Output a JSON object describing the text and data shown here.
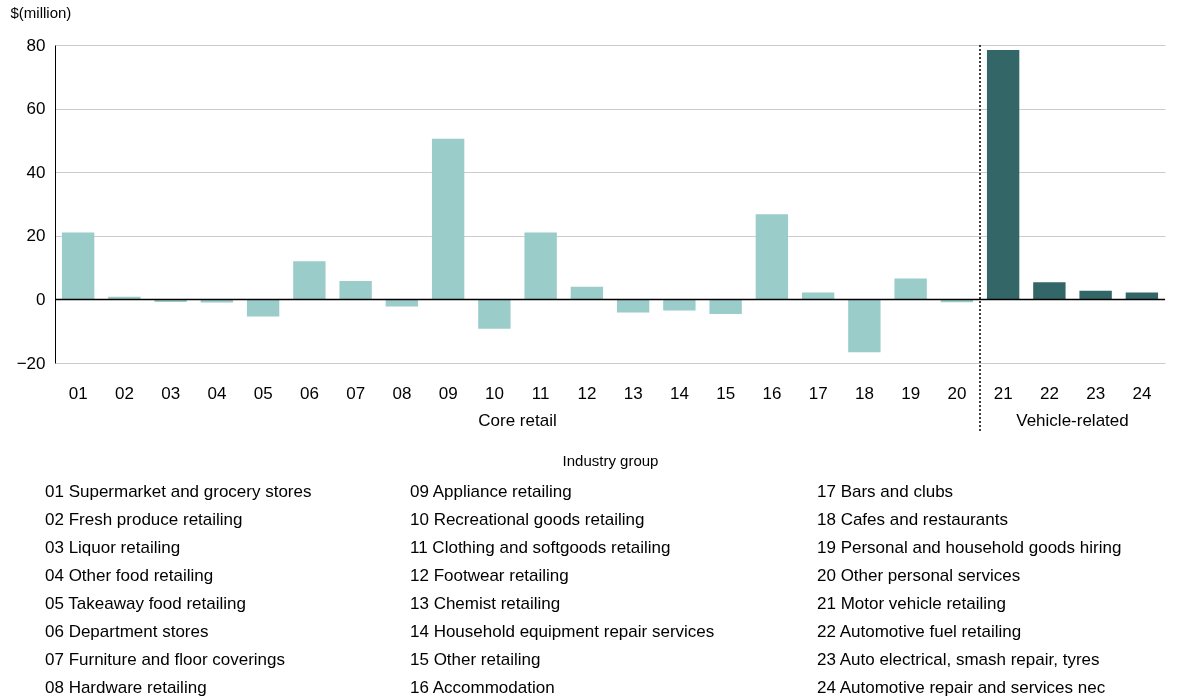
{
  "chart_data": {
    "type": "bar",
    "xlabel": "Industry group",
    "ylabel": "$(million)",
    "categories": [
      "01",
      "02",
      "03",
      "04",
      "05",
      "06",
      "07",
      "08",
      "09",
      "10",
      "11",
      "12",
      "13",
      "14",
      "15",
      "16",
      "17",
      "18",
      "19",
      "20",
      "21",
      "22",
      "23",
      "24"
    ],
    "values": [
      21,
      0.8,
      -0.8,
      -1,
      -5.4,
      12,
      5.8,
      -2.2,
      50.5,
      -9.2,
      21,
      4,
      -4.1,
      -3.5,
      -4.6,
      26.8,
      2.2,
      -16.6,
      6.6,
      -0.9,
      78.4,
      5.4,
      2.7,
      2.2
    ],
    "colors": [
      "#9accca",
      "#9accca",
      "#9accca",
      "#9accca",
      "#9accca",
      "#9accca",
      "#9accca",
      "#9accca",
      "#9accca",
      "#9accca",
      "#9accca",
      "#9accca",
      "#9accca",
      "#9accca",
      "#9accca",
      "#9accca",
      "#9accca",
      "#9accca",
      "#9accca",
      "#9accca",
      "#336666",
      "#336666",
      "#336666",
      "#336666"
    ],
    "ylim": [
      -20,
      80
    ],
    "yticks": [
      -20,
      0,
      20,
      40,
      60,
      80
    ],
    "grid": "y",
    "ref_lines": [
      {
        "axis": "y",
        "value": 0,
        "color": "#000000",
        "line_style": "solid"
      },
      {
        "axis": "x",
        "value": "21",
        "color": "#000000",
        "line_style": "dotted"
      }
    ],
    "annotations": [
      "Core retail",
      "Vehicle-related",
      "01 Supermarket and grocery stores",
      "02 Fresh produce retailing",
      "03 Liquor retailing",
      "04 Other food retailing",
      "05 Takeaway food retailing",
      "06 Department stores",
      "07 Furniture and floor coverings",
      "08 Hardware retailing",
      "09 Appliance retailing",
      "10 Recreational goods retailing",
      "11 Clothing and softgoods retailing",
      "12 Footwear retailing",
      "13 Chemist retailing",
      "14 Household equipment repair services",
      "15 Other retailing",
      "16 Accommodation",
      "17 Bars and clubs",
      "18 Cafes and restaurants",
      "19 Personal and household goods hiring",
      "20 Other personal services",
      "21 Motor vehicle retailing",
      "22 Automotive fuel retailing",
      "23 Auto electrical, smash repair, tyres",
      "24 Automotive repair and services nec"
    ]
  }
}
